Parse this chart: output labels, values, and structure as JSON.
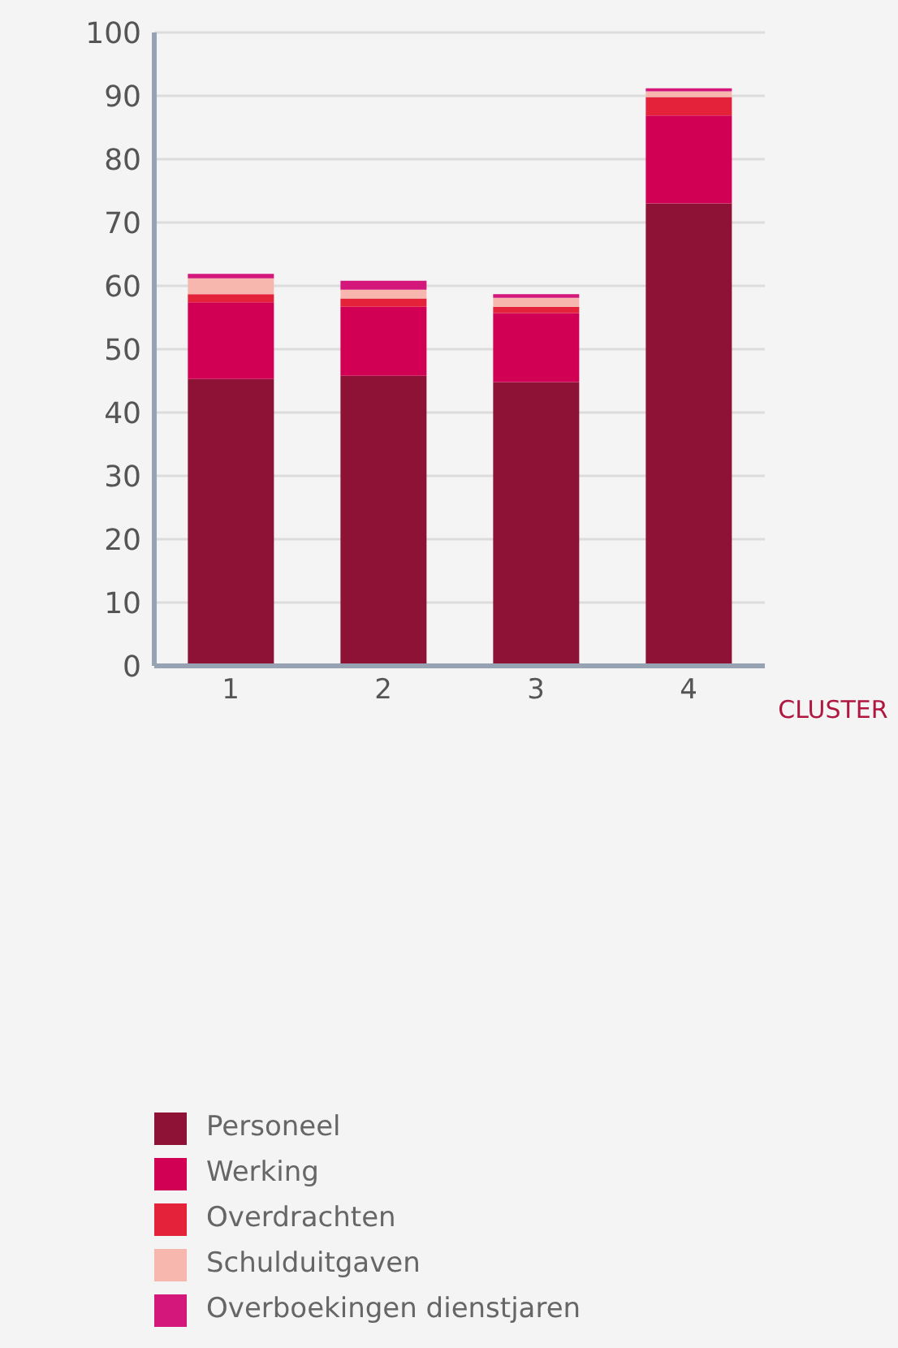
{
  "chart_data": {
    "type": "bar",
    "stacked": true,
    "xlabel": "CLUSTER",
    "categories": [
      "1",
      "2",
      "3",
      "4"
    ],
    "series": [
      {
        "name": "Personeel",
        "color": "#8e1236",
        "values": [
          45.3,
          45.8,
          44.8,
          73.0
        ]
      },
      {
        "name": "Werking",
        "color": "#d20054",
        "values": [
          12.1,
          10.9,
          10.9,
          13.9
        ]
      },
      {
        "name": "Overdrachten",
        "color": "#e4223a",
        "values": [
          1.3,
          1.3,
          1.0,
          2.9
        ]
      },
      {
        "name": "Schulduitgaven",
        "color": "#f7b7ae",
        "values": [
          2.5,
          1.4,
          1.4,
          0.9
        ]
      },
      {
        "name": "Overboekingen dienstjaren",
        "color": "#d4177a",
        "values": [
          0.7,
          1.4,
          0.6,
          0.5
        ]
      }
    ],
    "ylim": [
      0,
      100
    ],
    "yticks": [
      0,
      10,
      20,
      30,
      40,
      50,
      60,
      70,
      80,
      90,
      100
    ],
    "grid": "y",
    "legend": "bottom"
  }
}
